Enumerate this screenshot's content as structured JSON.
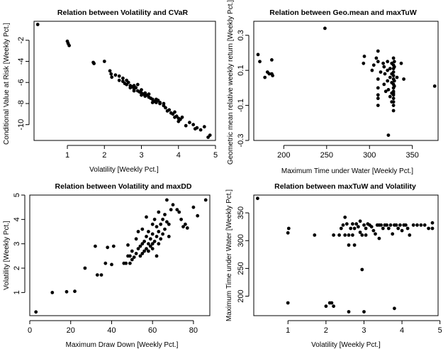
{
  "chart_data": [
    {
      "type": "scatter",
      "title": "Relation between Volatility and CVaR",
      "xlabel": "Volatility [Weekly Pct.]",
      "ylabel": "Conditional Value at Risk [Weekly Pct.]",
      "xlim": [
        0.1,
        5.0
      ],
      "ylim": [
        -11.5,
        -0.2
      ],
      "xticks": [
        1,
        2,
        3,
        4,
        5
      ],
      "yticks": [
        -10,
        -8,
        -6,
        -4,
        -2
      ],
      "points": [
        [
          0.2,
          -0.5
        ],
        [
          1.0,
          -2.1
        ],
        [
          1.02,
          -2.3
        ],
        [
          1.05,
          -2.5
        ],
        [
          1.7,
          -4.1
        ],
        [
          1.72,
          -4.2
        ],
        [
          2.0,
          -4.0
        ],
        [
          2.15,
          -4.9
        ],
        [
          2.18,
          -5.2
        ],
        [
          2.2,
          -5.5
        ],
        [
          2.4,
          -5.4
        ],
        [
          2.4,
          -5.8
        ],
        [
          2.5,
          -5.9
        ],
        [
          2.55,
          -6.1
        ],
        [
          2.6,
          -6.2
        ],
        [
          2.65,
          -6.0
        ],
        [
          2.7,
          -6.3
        ],
        [
          2.75,
          -6.4
        ],
        [
          2.8,
          -6.6
        ],
        [
          2.85,
          -6.5
        ],
        [
          2.9,
          -6.2
        ],
        [
          2.9,
          -6.8
        ],
        [
          2.95,
          -6.9
        ],
        [
          3.0,
          -7.0
        ],
        [
          3.05,
          -7.1
        ],
        [
          3.1,
          -7.3
        ],
        [
          3.15,
          -7.2
        ],
        [
          3.2,
          -7.4
        ],
        [
          3.25,
          -7.5
        ],
        [
          3.3,
          -7.6
        ],
        [
          3.35,
          -7.8
        ],
        [
          3.4,
          -7.9
        ],
        [
          3.45,
          -7.7
        ],
        [
          3.5,
          -8.0
        ],
        [
          3.6,
          -8.2
        ],
        [
          3.65,
          -8.4
        ],
        [
          3.7,
          -8.7
        ],
        [
          3.75,
          -8.6
        ],
        [
          3.8,
          -8.9
        ],
        [
          3.85,
          -9.0
        ],
        [
          3.9,
          -9.3
        ],
        [
          3.95,
          -9.2
        ],
        [
          4.0,
          -9.4
        ],
        [
          4.05,
          -9.5
        ],
        [
          4.1,
          -9.3
        ],
        [
          4.2,
          -10.1
        ],
        [
          4.3,
          -9.8
        ],
        [
          4.4,
          -10.0
        ],
        [
          4.45,
          -10.4
        ],
        [
          4.5,
          -10.3
        ],
        [
          4.6,
          -10.5
        ],
        [
          4.7,
          -10.2
        ],
        [
          4.8,
          -11.2
        ],
        [
          4.85,
          -11.0
        ],
        [
          2.6,
          -5.8
        ],
        [
          2.8,
          -6.3
        ],
        [
          3.0,
          -6.7
        ],
        [
          3.2,
          -7.1
        ],
        [
          3.4,
          -7.6
        ],
        [
          3.6,
          -8.0
        ],
        [
          3.0,
          -7.2
        ],
        [
          2.8,
          -6.8
        ],
        [
          3.3,
          -7.9
        ],
        [
          2.5,
          -5.6
        ],
        [
          2.7,
          -6.5
        ],
        [
          3.5,
          -7.9
        ],
        [
          3.9,
          -8.8
        ],
        [
          4.0,
          -9.7
        ],
        [
          3.1,
          -7.0
        ],
        [
          2.3,
          -5.3
        ]
      ]
    },
    {
      "type": "scatter",
      "title": "Relation between Geo.mean and maxTuW",
      "xlabel": "Maximum Time under Water [Weekly Pct.]",
      "ylabel": "Geometric mean relative weekly return [Weekly Pct.]",
      "xlim": [
        165,
        380
      ],
      "ylim": [
        -0.3,
        0.38
      ],
      "xticks": [
        200,
        250,
        300,
        350
      ],
      "yticks": [
        -0.3,
        -0.1,
        0.1,
        0.3
      ],
      "points": [
        [
          170,
          0.19
        ],
        [
          172,
          0.15
        ],
        [
          178,
          0.06
        ],
        [
          181,
          0.09
        ],
        [
          183,
          0.08
        ],
        [
          186,
          0.08
        ],
        [
          186,
          0.16
        ],
        [
          187,
          0.07
        ],
        [
          248,
          0.34
        ],
        [
          293,
          0.14
        ],
        [
          294,
          0.18
        ],
        [
          303,
          0.1
        ],
        [
          305,
          0.13
        ],
        [
          308,
          0.17
        ],
        [
          310,
          0.15
        ],
        [
          310,
          0.05
        ],
        [
          310,
          0.0
        ],
        [
          310,
          -0.04
        ],
        [
          310,
          -0.06
        ],
        [
          310,
          -0.1
        ],
        [
          310,
          0.21
        ],
        [
          313,
          0.09
        ],
        [
          316,
          0.14
        ],
        [
          317,
          0.12
        ],
        [
          317,
          0.02
        ],
        [
          318,
          0.08
        ],
        [
          319,
          -0.02
        ],
        [
          321,
          0.15
        ],
        [
          321,
          0.1
        ],
        [
          321,
          0.04
        ],
        [
          322,
          -0.01
        ],
        [
          322,
          -0.27
        ],
        [
          324,
          0.11
        ],
        [
          324,
          0.06
        ],
        [
          324,
          -0.05
        ],
        [
          326,
          0.14
        ],
        [
          326,
          0.08
        ],
        [
          326,
          0.03
        ],
        [
          326,
          -0.03
        ],
        [
          326,
          -0.08
        ],
        [
          328,
          0.17
        ],
        [
          328,
          0.13
        ],
        [
          328,
          0.11
        ],
        [
          328,
          0.09
        ],
        [
          328,
          0.07
        ],
        [
          328,
          0.05
        ],
        [
          328,
          0.02
        ],
        [
          328,
          0.0
        ],
        [
          328,
          -0.02
        ],
        [
          328,
          -0.04
        ],
        [
          328,
          -0.06
        ],
        [
          328,
          -0.08
        ],
        [
          328,
          -0.1
        ],
        [
          328,
          -0.13
        ],
        [
          328,
          -0.03
        ],
        [
          329,
          0.15
        ],
        [
          329,
          0.12
        ],
        [
          329,
          0.04
        ],
        [
          329,
          0.01
        ],
        [
          332,
          0.06
        ],
        [
          337,
          0.14
        ],
        [
          340,
          0.05
        ],
        [
          376,
          0.01
        ]
      ]
    },
    {
      "type": "scatter",
      "title": "Relation between Volatility and maxDD",
      "xlabel": "Maximum Draw Down [Weekly Pct.]",
      "ylabel": "Volatility [Weekly Pct.]",
      "xlim": [
        0,
        88
      ],
      "ylim": [
        0.05,
        5.0
      ],
      "xticks": [
        0,
        20,
        40,
        60,
        80
      ],
      "yticks": [
        1,
        2,
        3,
        4,
        5
      ],
      "points": [
        [
          3,
          0.2
        ],
        [
          11,
          1.0
        ],
        [
          18,
          1.03
        ],
        [
          22,
          1.05
        ],
        [
          27,
          2.0
        ],
        [
          32,
          2.9
        ],
        [
          33,
          1.72
        ],
        [
          35,
          1.72
        ],
        [
          37,
          2.2
        ],
        [
          38,
          2.85
        ],
        [
          40,
          2.15
        ],
        [
          41,
          2.9
        ],
        [
          46,
          2.2
        ],
        [
          47,
          2.2
        ],
        [
          48,
          2.5
        ],
        [
          48,
          2.95
        ],
        [
          49,
          2.2
        ],
        [
          49,
          2.5
        ],
        [
          50,
          2.35
        ],
        [
          50,
          2.7
        ],
        [
          51,
          2.45
        ],
        [
          52,
          2.6
        ],
        [
          52,
          3.2
        ],
        [
          53,
          2.8
        ],
        [
          53,
          3.5
        ],
        [
          54,
          2.5
        ],
        [
          54,
          2.9
        ],
        [
          55,
          2.6
        ],
        [
          55,
          3.0
        ],
        [
          55,
          3.6
        ],
        [
          56,
          2.7
        ],
        [
          56,
          3.1
        ],
        [
          57,
          2.8
        ],
        [
          57,
          3.3
        ],
        [
          57,
          4.1
        ],
        [
          58,
          2.7
        ],
        [
          58,
          3.0
        ],
        [
          58,
          3.5
        ],
        [
          59,
          2.9
        ],
        [
          59,
          3.2
        ],
        [
          60,
          2.8
        ],
        [
          60,
          3.0
        ],
        [
          60,
          3.4
        ],
        [
          60,
          3.8
        ],
        [
          61,
          3.1
        ],
        [
          61,
          4.0
        ],
        [
          62,
          2.5
        ],
        [
          62,
          3.3
        ],
        [
          62,
          3.7
        ],
        [
          63,
          3.0
        ],
        [
          63,
          3.5
        ],
        [
          63,
          4.3
        ],
        [
          64,
          3.2
        ],
        [
          64,
          3.8
        ],
        [
          65,
          3.4
        ],
        [
          65,
          4.0
        ],
        [
          66,
          3.6
        ],
        [
          66,
          4.2
        ],
        [
          67,
          3.9
        ],
        [
          67,
          4.8
        ],
        [
          68,
          3.3
        ],
        [
          68,
          3.8
        ],
        [
          69,
          4.4
        ],
        [
          70,
          4.6
        ],
        [
          72,
          4.4
        ],
        [
          73,
          4.3
        ],
        [
          74,
          4.0
        ],
        [
          75,
          3.7
        ],
        [
          76,
          3.8
        ],
        [
          77,
          3.65
        ],
        [
          80,
          4.5
        ],
        [
          82,
          4.15
        ],
        [
          86,
          4.8
        ]
      ]
    },
    {
      "type": "scatter",
      "title": "Relation between maxTuW and Volatility",
      "xlabel": "Volatility [Weekly Pct.]",
      "ylabel": "Maximum Time under Water [Weekly Pct.]",
      "xlim": [
        0.1,
        4.95
      ],
      "ylim": [
        165,
        382
      ],
      "xticks": [
        1,
        2,
        3,
        4,
        5
      ],
      "yticks": [
        200,
        250,
        300,
        350
      ],
      "points": [
        [
          0.2,
          376
        ],
        [
          1.0,
          188
        ],
        [
          1.0,
          314
        ],
        [
          1.02,
          322
        ],
        [
          1.7,
          310
        ],
        [
          2.0,
          182
        ],
        [
          2.1,
          188
        ],
        [
          2.15,
          188
        ],
        [
          2.2,
          182
        ],
        [
          2.2,
          310
        ],
        [
          2.35,
          310
        ],
        [
          2.4,
          322
        ],
        [
          2.45,
          328
        ],
        [
          2.5,
          342
        ],
        [
          2.5,
          310
        ],
        [
          2.55,
          330
        ],
        [
          2.6,
          310
        ],
        [
          2.6,
          292
        ],
        [
          2.6,
          172
        ],
        [
          2.65,
          322
        ],
        [
          2.7,
          330
        ],
        [
          2.7,
          310
        ],
        [
          2.75,
          292
        ],
        [
          2.75,
          322
        ],
        [
          2.8,
          330
        ],
        [
          2.85,
          325
        ],
        [
          2.9,
          335
        ],
        [
          2.9,
          315
        ],
        [
          2.95,
          248
        ],
        [
          2.95,
          310
        ],
        [
          3.0,
          172
        ],
        [
          3.0,
          328
        ],
        [
          3.05,
          322
        ],
        [
          3.05,
          310
        ],
        [
          3.1,
          330
        ],
        [
          3.15,
          328
        ],
        [
          3.2,
          325
        ],
        [
          3.25,
          318
        ],
        [
          3.3,
          312
        ],
        [
          3.35,
          328
        ],
        [
          3.4,
          304
        ],
        [
          3.4,
          328
        ],
        [
          3.45,
          328
        ],
        [
          3.5,
          322
        ],
        [
          3.55,
          328
        ],
        [
          3.6,
          328
        ],
        [
          3.65,
          322
        ],
        [
          3.7,
          328
        ],
        [
          3.75,
          312
        ],
        [
          3.8,
          328
        ],
        [
          3.8,
          178
        ],
        [
          3.85,
          328
        ],
        [
          3.9,
          322
        ],
        [
          3.95,
          328
        ],
        [
          4.0,
          318
        ],
        [
          4.05,
          328
        ],
        [
          4.1,
          328
        ],
        [
          4.15,
          322
        ],
        [
          4.2,
          310
        ],
        [
          4.3,
          328
        ],
        [
          4.4,
          328
        ],
        [
          4.5,
          328
        ],
        [
          4.6,
          328
        ],
        [
          4.7,
          322
        ],
        [
          4.8,
          332
        ],
        [
          4.8,
          322
        ]
      ]
    }
  ]
}
